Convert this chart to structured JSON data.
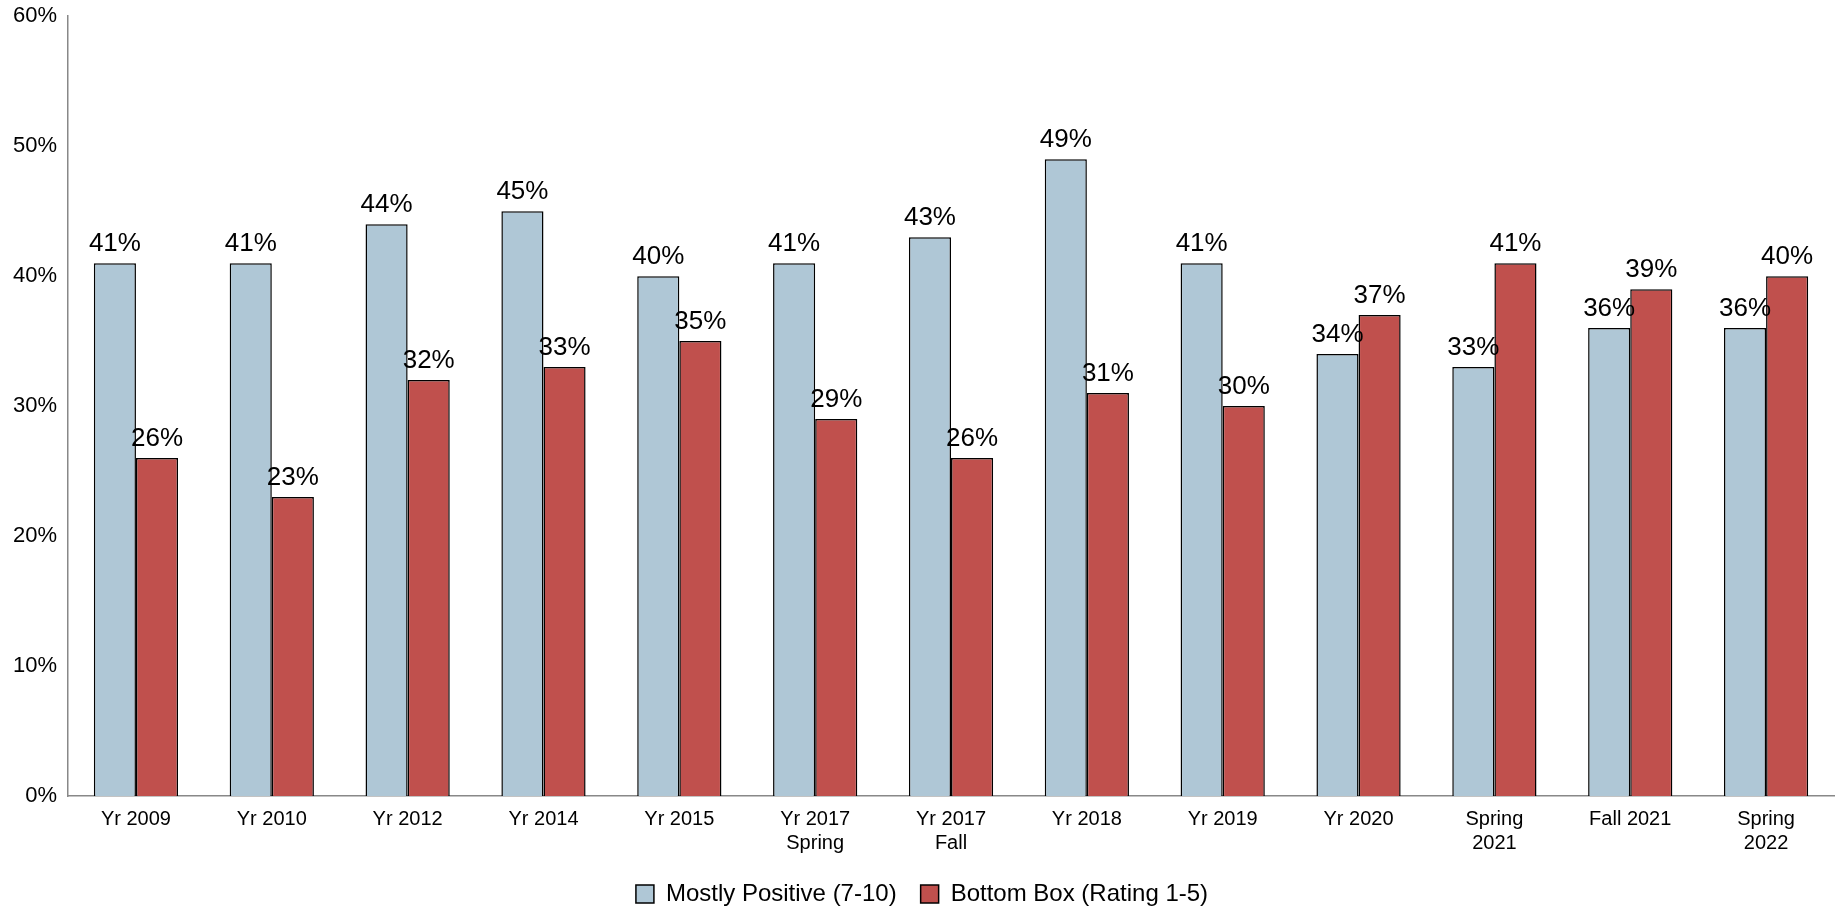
{
  "chart_data": {
    "type": "bar",
    "categories": [
      "Yr 2009",
      "Yr 2010",
      "Yr 2012",
      "Yr 2014",
      "Yr 2015",
      "Yr 2017\nSpring",
      "Yr 2017\nFall",
      "Yr 2018",
      "Yr 2019",
      "Yr 2020",
      "Spring\n2021",
      "Fall 2021",
      "Spring\n2022"
    ],
    "series": [
      {
        "name": "Mostly Positive (7-10)",
        "color": "#afc7d6",
        "values": [
          41,
          41,
          44,
          45,
          40,
          41,
          43,
          49,
          41,
          34,
          33,
          36,
          36
        ],
        "value_labels": [
          "41%",
          "41%",
          "44%",
          "45%",
          "40%",
          "41%",
          "43%",
          "49%",
          "41%",
          "34%",
          "33%",
          "36%",
          "36%"
        ]
      },
      {
        "name": "Bottom Box (Rating 1-5)",
        "color": "#c0504d",
        "values": [
          26,
          23,
          32,
          33,
          35,
          29,
          26,
          31,
          30,
          37,
          41,
          39,
          40
        ],
        "value_labels": [
          "26%",
          "23%",
          "32%",
          "33%",
          "35%",
          "29%",
          "26%",
          "31%",
          "30%",
          "37%",
          "41%",
          "39%",
          "40%"
        ]
      }
    ],
    "ylim": [
      0,
      60
    ],
    "yticks": [
      {
        "value": 0,
        "label": "0%"
      },
      {
        "value": 10,
        "label": "10%"
      },
      {
        "value": 20,
        "label": "20%"
      },
      {
        "value": 30,
        "label": "30%"
      },
      {
        "value": 40,
        "label": "40%"
      },
      {
        "value": 50,
        "label": "50%"
      },
      {
        "value": 60,
        "label": "60%"
      }
    ],
    "grid": false,
    "legend": "bottom"
  }
}
